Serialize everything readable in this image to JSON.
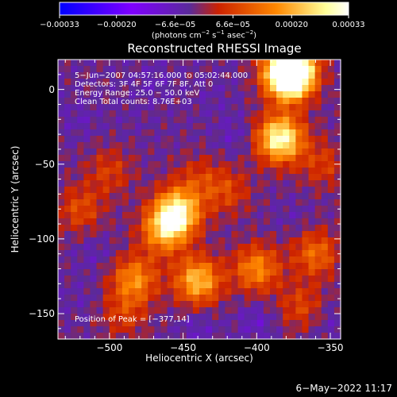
{
  "chart_data": {
    "type": "heatmap",
    "title": "Reconstructed RHESSI Image",
    "xlabel": "Heliocentric X (arcsec)",
    "ylabel": "Heliocentric Y (arcsec)",
    "xlim": [
      -535,
      -343
    ],
    "ylim": [
      -167,
      20
    ],
    "x_ticks": [
      -500,
      -450,
      -400,
      -350
    ],
    "y_ticks": [
      0,
      -50,
      -100,
      -150
    ],
    "x_tick_labels": [
      "−500",
      "−450",
      "−400",
      "−350"
    ],
    "y_tick_labels": [
      "0",
      "−50",
      "−100",
      "−150"
    ],
    "colorbar": {
      "range": [
        -0.00033,
        0.00033
      ],
      "ticks": [
        -0.00033,
        -0.0002,
        -6.6e-05,
        6.6e-05,
        0.0002,
        0.00033
      ],
      "tick_labels": [
        "−0.00033",
        "−0.00020",
        "−6.6e−05",
        "6.6e−05",
        "0.00020",
        "0.00033"
      ],
      "unit_parts": [
        "(photons cm",
        "−2",
        " s",
        "−1",
        " asec",
        "−2",
        ")"
      ],
      "colors": [
        "#0000ff",
        "#7f00ff",
        "#5a2a9a",
        "#cc2200",
        "#ff8800",
        "#ffff99",
        "#ffffff"
      ]
    },
    "annotations": [
      "5−Jun−2007 04:57:16.000 to 05:02:44.000",
      "Detectors: 3F 4F 5F 6F 7F 8F, Att 0",
      "Energy Range: 25.0 − 50.0 keV",
      "Clean     Total counts: 8.76E+03"
    ],
    "peak_label": "Position of Peak = [−377,14]",
    "peak": {
      "x": -377,
      "y": 14,
      "value": 0.00033
    },
    "hot_spots": [
      {
        "x": -378,
        "y": 8,
        "value": 0.0003
      },
      {
        "x": -384,
        "y": -33,
        "value": 0.00031
      },
      {
        "x": -454,
        "y": -82,
        "value": 0.00028
      },
      {
        "x": -440,
        "y": -128,
        "value": 0.00022
      },
      {
        "x": -483,
        "y": -127,
        "value": 0.00016
      },
      {
        "x": -463,
        "y": -95,
        "value": 0.00018
      },
      {
        "x": -400,
        "y": -120,
        "value": 0.00016
      },
      {
        "x": -360,
        "y": -110,
        "value": 0.00012
      },
      {
        "x": -520,
        "y": -80,
        "value": 8e-05
      },
      {
        "x": -500,
        "y": -55,
        "value": 6e-05
      },
      {
        "x": -420,
        "y": -68,
        "value": 7e-05
      },
      {
        "x": -370,
        "y": -145,
        "value": 7e-05
      },
      {
        "x": -490,
        "y": -150,
        "value": 6e-05
      },
      {
        "x": -355,
        "y": -50,
        "value": 6e-05
      },
      {
        "x": -440,
        "y": -60,
        "value": 5e-05
      },
      {
        "x": -485,
        "y": -20,
        "value": -4e-05
      },
      {
        "x": -520,
        "y": -20,
        "value": -6e-05
      },
      {
        "x": -470,
        "y": 5,
        "value": -6e-05
      },
      {
        "x": -430,
        "y": -5,
        "value": -5e-05
      },
      {
        "x": -415,
        "y": -30,
        "value": -7e-05
      },
      {
        "x": -510,
        "y": -110,
        "value": -6e-05
      },
      {
        "x": -400,
        "y": -155,
        "value": -8e-05
      },
      {
        "x": -350,
        "y": -155,
        "value": -6e-05
      },
      {
        "x": -440,
        "y": -160,
        "value": -7e-05
      },
      {
        "x": -520,
        "y": -140,
        "value": -5e-05
      },
      {
        "x": -375,
        "y": -85,
        "value": -5e-05
      }
    ]
  },
  "footer": {
    "date_stamp": "6−May−2022 11:17"
  }
}
